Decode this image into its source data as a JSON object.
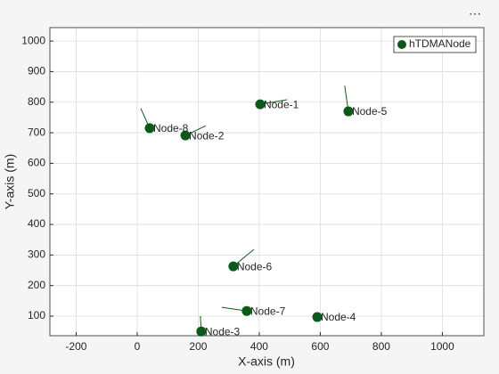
{
  "chart_data": {
    "type": "scatter",
    "xlabel": "X-axis (m)",
    "ylabel": "Y-axis (m)",
    "x": [
      403,
      158,
      210,
      590,
      692,
      315,
      359,
      41
    ],
    "series": [
      {
        "name": "hTDMANode",
        "color": "#0b5a1a",
        "values": [
          793,
          691,
          50,
          97,
          770,
          263,
          117,
          715
        ]
      }
    ],
    "labels": [
      "Node-1",
      "Node-2",
      "Node-3",
      "Node-4",
      "Node-5",
      "Node-6",
      "Node-7",
      "Node-8"
    ],
    "heading_x": [
      491,
      225,
      207,
      null,
      680,
      382,
      277,
      12
    ],
    "heading_y": [
      808,
      723,
      100,
      null,
      854,
      318,
      129,
      779
    ],
    "xlim": [
      -286,
      1136
    ],
    "ylim": [
      36,
      1044
    ],
    "xticks": [
      -200,
      0,
      200,
      400,
      600,
      800,
      1000
    ],
    "yticks": [
      100,
      200,
      300,
      400,
      500,
      600,
      700,
      800,
      900,
      1000
    ],
    "grid": true,
    "legend": "top-right"
  }
}
